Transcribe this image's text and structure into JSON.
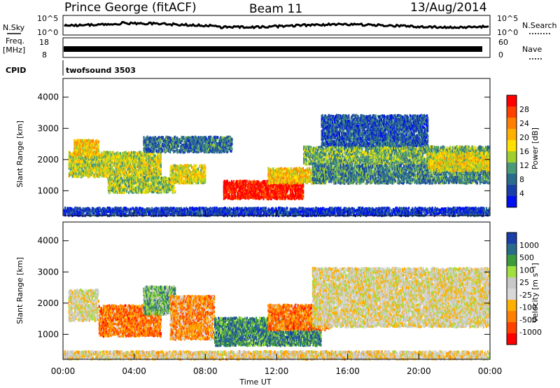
{
  "header": {
    "station": "Prince George (fitACF)",
    "beam": "Beam 11",
    "date": "13/Aug/2014"
  },
  "top_panels": {
    "nsky_label": "N.Sky",
    "nsky_ticks": [
      "10^5",
      "10^0"
    ],
    "nsearch_label": "N.Search",
    "nsearch_ticks": [
      "10^5",
      "10^0"
    ],
    "freq_label": "Freq.",
    "freq_unit": "[MHz]",
    "freq_ticks": [
      "18",
      "8"
    ],
    "nave_label": "Nave",
    "nave_ticks": [
      "60",
      "0"
    ],
    "cpid_label": "CPID",
    "cpid_value": "twofsound 3503"
  },
  "chart_data": [
    {
      "type": "heatmap",
      "name": "power",
      "ylabel": "Slant Range [km]",
      "ylim": [
        200,
        4600
      ],
      "yticks": [
        1000,
        2000,
        3000,
        4000
      ],
      "xlim": [
        0,
        24
      ],
      "colorbar": {
        "label": "Power [dB]",
        "ticks": [
          "4",
          "8",
          "12",
          "16",
          "20",
          "24",
          "28"
        ],
        "colors": [
          "#0010f0",
          "#1a3fa8",
          "#2b6b8c",
          "#4a9a7a",
          "#9fd030",
          "#ffe000",
          "#ffb000",
          "#ff8000",
          "#ff4000",
          "#ff0000"
        ]
      },
      "bands": [
        {
          "h0": 0,
          "h1": 24,
          "r0": 250,
          "r1": 520,
          "level": 0.12
        },
        {
          "h0": 0.3,
          "h1": 5.5,
          "r0": 1500,
          "r1": 2300,
          "level": 0.5
        },
        {
          "h0": 0.6,
          "h1": 2.0,
          "r0": 2200,
          "r1": 2700,
          "level": 0.6
        },
        {
          "h0": 2.5,
          "h1": 6.3,
          "r0": 1000,
          "r1": 1500,
          "level": 0.45
        },
        {
          "h0": 4.5,
          "h1": 9.5,
          "r0": 2300,
          "r1": 2800,
          "level": 0.25
        },
        {
          "h0": 6.0,
          "h1": 8.0,
          "r0": 1300,
          "r1": 1900,
          "level": 0.55
        },
        {
          "h0": 9.0,
          "h1": 13.5,
          "r0": 800,
          "r1": 1400,
          "level": 0.95
        },
        {
          "h0": 11.5,
          "h1": 14.8,
          "r0": 1300,
          "r1": 1800,
          "level": 0.6
        },
        {
          "h0": 13.5,
          "h1": 24,
          "r0": 1900,
          "r1": 2500,
          "level": 0.4
        },
        {
          "h0": 14.0,
          "h1": 24,
          "r0": 1300,
          "r1": 1900,
          "level": 0.3
        },
        {
          "h0": 14.5,
          "h1": 20.5,
          "r0": 2500,
          "r1": 3500,
          "level": 0.2
        },
        {
          "h0": 20.5,
          "h1": 24,
          "r0": 1700,
          "r1": 2300,
          "level": 0.55
        }
      ]
    },
    {
      "type": "heatmap",
      "name": "velocity",
      "ylabel": "Slant Range [km]",
      "ylim": [
        200,
        4600
      ],
      "yticks": [
        1000,
        2000,
        3000,
        4000
      ],
      "xlim": [
        0,
        24
      ],
      "xticks": [
        "00:00",
        "04:00",
        "08:00",
        "12:00",
        "16:00",
        "20:00",
        "00:00"
      ],
      "xlabel": "Time UT",
      "colorbar": {
        "label": "Velocity [m s⁻¹]",
        "ticks": [
          "-1000",
          "-500",
          "-100",
          "-25",
          "25",
          "100",
          "500",
          "1000"
        ],
        "colors": [
          "#ff0000",
          "#ff4000",
          "#ff8000",
          "#ffb000",
          "#d8d8d8",
          "#c8c8c8",
          "#a0e040",
          "#3c9c3c",
          "#2a6b8a",
          "#1a3fa8"
        ]
      },
      "bands": [
        {
          "h0": 0,
          "h1": 24,
          "r0": 250,
          "r1": 520,
          "level": 0.45
        },
        {
          "h0": 0.3,
          "h1": 2.0,
          "r0": 1500,
          "r1": 2500,
          "level": 0.5
        },
        {
          "h0": 2.0,
          "h1": 5.5,
          "r0": 1000,
          "r1": 2000,
          "level": 0.25
        },
        {
          "h0": 4.5,
          "h1": 6.3,
          "r0": 1700,
          "r1": 2600,
          "level": 0.7
        },
        {
          "h0": 6.0,
          "h1": 8.5,
          "r0": 900,
          "r1": 2300,
          "level": 0.3
        },
        {
          "h0": 8.5,
          "h1": 14.5,
          "r0": 700,
          "r1": 1600,
          "level": 0.8
        },
        {
          "h0": 11.5,
          "h1": 15.0,
          "r0": 1200,
          "r1": 2000,
          "level": 0.25
        },
        {
          "h0": 14.0,
          "h1": 24,
          "r0": 1300,
          "r1": 3200,
          "level": 0.48
        },
        {
          "h0": 20.5,
          "h1": 24,
          "r0": 1600,
          "r1": 2500,
          "level": 0.48
        }
      ]
    }
  ]
}
